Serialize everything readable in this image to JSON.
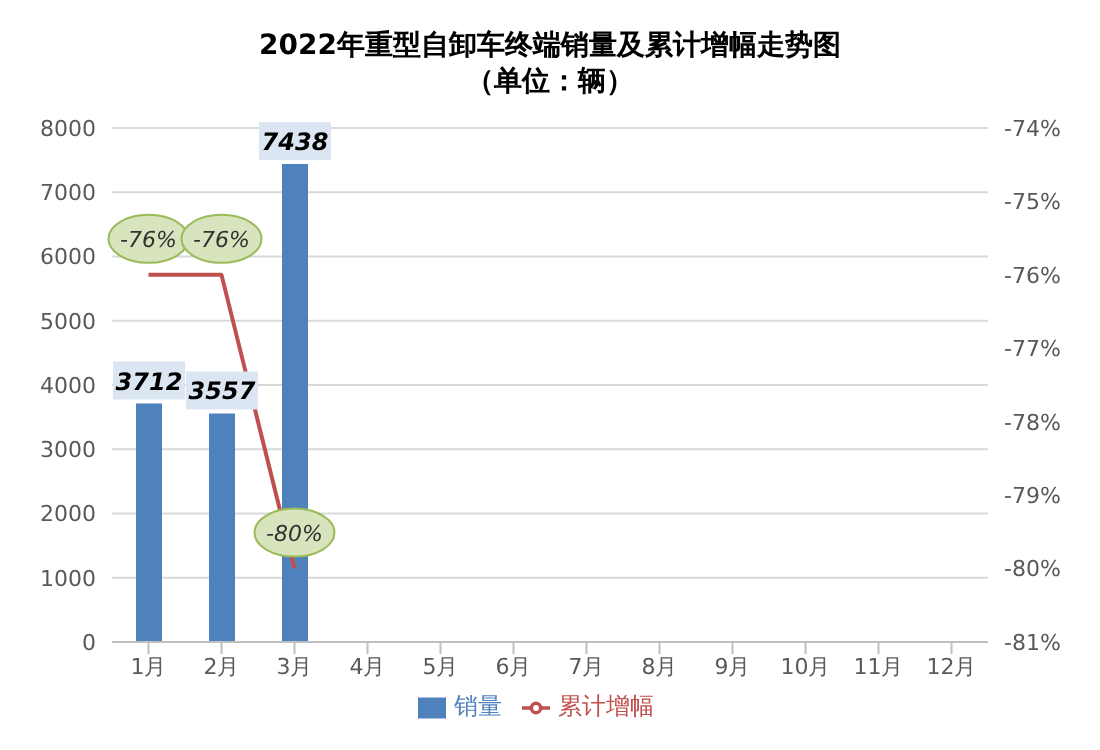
{
  "chart_data": {
    "type": "bar",
    "title": "2022年重型自卸车终端销量及累计增幅走势图",
    "subtitle": "（单位：辆）",
    "categories": [
      "1月",
      "2月",
      "3月",
      "4月",
      "5月",
      "6月",
      "7月",
      "8月",
      "9月",
      "10月",
      "11月",
      "12月"
    ],
    "series": [
      {
        "name": "销量",
        "color": "#4f81bd",
        "values": [
          3712,
          3557,
          7438,
          null,
          null,
          null,
          null,
          null,
          null,
          null,
          null,
          null
        ]
      },
      {
        "name": "累计增幅",
        "type": "line",
        "axis": "y2",
        "color": "#c0504d",
        "values": [
          -76,
          -76,
          -80,
          null,
          null,
          null,
          null,
          null,
          null,
          null,
          null,
          null
        ],
        "value_labels": [
          "-76%",
          "-76%",
          "-80%",
          null,
          null,
          null,
          null,
          null,
          null,
          null,
          null,
          null
        ]
      }
    ],
    "ylim": [
      0,
      8000
    ],
    "yticks": [
      0,
      1000,
      2000,
      3000,
      4000,
      5000,
      6000,
      7000,
      8000
    ],
    "y2lim": [
      -81,
      -74
    ],
    "y2ticks": [
      {
        "value": -81,
        "label": "-81%"
      },
      {
        "value": -80,
        "label": "-80%"
      },
      {
        "value": -79,
        "label": "-79%"
      },
      {
        "value": -78,
        "label": "-78%"
      },
      {
        "value": -77,
        "label": "-77%"
      },
      {
        "value": -76,
        "label": "-76%"
      },
      {
        "value": -75,
        "label": "-75%"
      },
      {
        "value": -74,
        "label": "-74%"
      }
    ],
    "data_labels": true,
    "grid": "y",
    "legend": "bottom"
  }
}
